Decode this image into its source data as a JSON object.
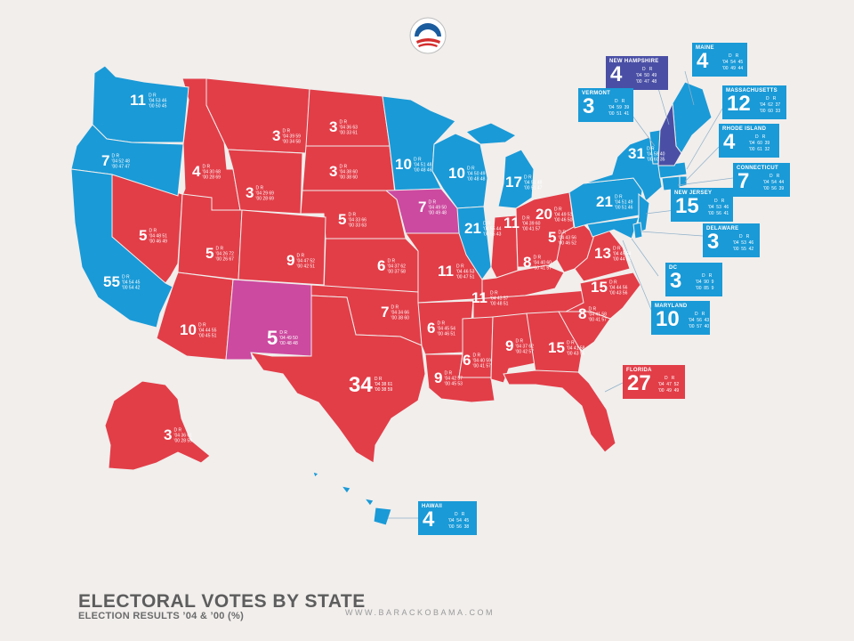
{
  "colors": {
    "democrat": "#1a9ad7",
    "republican": "#e23e48",
    "split": "#cc4aa0",
    "new_hampshire": "#4a4fa5",
    "background": "#f1eeec"
  },
  "header": {
    "logo": "campaign-logo-icon"
  },
  "footer": {
    "title": "ELECTORAL VOTES BY STATE",
    "subtitle": "ELECTION RESULTS ’04 & ’00 (%)",
    "url": "WWW.BARACKOBAMA.COM"
  },
  "col_headers": {
    "d": "D",
    "r": "R",
    "y04": "'04",
    "y00": "'00"
  },
  "states": [
    {
      "name": "Washington",
      "ev": "11",
      "r04": [
        "53",
        "46"
      ],
      "r00": [
        "50",
        "45"
      ]
    },
    {
      "name": "Oregon",
      "ev": "7",
      "r04": [
        "52",
        "48"
      ],
      "r00": [
        "47",
        "47"
      ]
    },
    {
      "name": "California",
      "ev": "55",
      "r04": [
        "54",
        "45"
      ],
      "r00": [
        "54",
        "42"
      ]
    },
    {
      "name": "Nevada",
      "ev": "5",
      "r04": [
        "48",
        "51"
      ],
      "r00": [
        "46",
        "49"
      ]
    },
    {
      "name": "Idaho",
      "ev": "4",
      "r04": [
        "30",
        "68"
      ],
      "r00": [
        "28",
        "69"
      ]
    },
    {
      "name": "Montana",
      "ev": "3",
      "r04": [
        "39",
        "59"
      ],
      "r00": [
        "34",
        "58"
      ]
    },
    {
      "name": "Wyoming",
      "ev": "3",
      "r04": [
        "29",
        "69"
      ],
      "r00": [
        "28",
        "69"
      ]
    },
    {
      "name": "Utah",
      "ev": "5",
      "r04": [
        "26",
        "72"
      ],
      "r00": [
        "26",
        "67"
      ]
    },
    {
      "name": "Arizona",
      "ev": "10",
      "r04": [
        "44",
        "55"
      ],
      "r00": [
        "45",
        "51"
      ]
    },
    {
      "name": "Colorado",
      "ev": "9",
      "r04": [
        "47",
        "52"
      ],
      "r00": [
        "42",
        "51"
      ]
    },
    {
      "name": "New Mexico",
      "ev": "5",
      "r04": [
        "49",
        "50"
      ],
      "r00": [
        "48",
        "48"
      ]
    },
    {
      "name": "North Dakota",
      "ev": "3",
      "r04": [
        "36",
        "63"
      ],
      "r00": [
        "33",
        "61"
      ]
    },
    {
      "name": "South Dakota",
      "ev": "3",
      "r04": [
        "38",
        "60"
      ],
      "r00": [
        "38",
        "60"
      ]
    },
    {
      "name": "Nebraska",
      "ev": "5",
      "r04": [
        "33",
        "66"
      ],
      "r00": [
        "33",
        "63"
      ]
    },
    {
      "name": "Kansas",
      "ev": "6",
      "r04": [
        "37",
        "62"
      ],
      "r00": [
        "37",
        "58"
      ]
    },
    {
      "name": "Oklahoma",
      "ev": "7",
      "r04": [
        "34",
        "66"
      ],
      "r00": [
        "38",
        "60"
      ]
    },
    {
      "name": "Texas",
      "ev": "34",
      "r04": [
        "38",
        "61"
      ],
      "r00": [
        "38",
        "59"
      ]
    },
    {
      "name": "Minnesota",
      "ev": "10",
      "r04": [
        "51",
        "48"
      ],
      "r00": [
        "48",
        "46"
      ]
    },
    {
      "name": "Iowa",
      "ev": "7",
      "r04": [
        "49",
        "50"
      ],
      "r00": [
        "49",
        "48"
      ]
    },
    {
      "name": "Missouri",
      "ev": "11",
      "r04": [
        "46",
        "53"
      ],
      "r00": [
        "47",
        "51"
      ]
    },
    {
      "name": "Arkansas",
      "ev": "6",
      "r04": [
        "45",
        "54"
      ],
      "r00": [
        "46",
        "51"
      ]
    },
    {
      "name": "Louisiana",
      "ev": "9",
      "r04": [
        "42",
        "57"
      ],
      "r00": [
        "45",
        "53"
      ]
    },
    {
      "name": "Wisconsin",
      "ev": "10",
      "r04": [
        "50",
        "49"
      ],
      "r00": [
        "48",
        "48"
      ]
    },
    {
      "name": "Illinois",
      "ev": "21",
      "r04": [
        "55",
        "44"
      ],
      "r00": [
        "55",
        "43"
      ]
    },
    {
      "name": "Michigan",
      "ev": "17",
      "r04": [
        "51",
        "48"
      ],
      "r00": [
        "51",
        "47"
      ]
    },
    {
      "name": "Indiana",
      "ev": "11",
      "r04": [
        "39",
        "60"
      ],
      "r00": [
        "41",
        "57"
      ]
    },
    {
      "name": "Kentucky",
      "ev": "8",
      "r04": [
        "40",
        "60"
      ],
      "r00": [
        "41",
        "57"
      ]
    },
    {
      "name": "Ohio",
      "ev": "20",
      "r04": [
        "49",
        "51"
      ],
      "r00": [
        "46",
        "50"
      ]
    },
    {
      "name": "Tennessee",
      "ev": "11",
      "r04": [
        "43",
        "57"
      ],
      "r00": [
        "48",
        "51"
      ]
    },
    {
      "name": "Mississippi",
      "ev": "6",
      "r04": [
        "40",
        "59"
      ],
      "r00": [
        "41",
        "57"
      ]
    },
    {
      "name": "Alabama",
      "ev": "9",
      "r04": [
        "37",
        "62"
      ],
      "r00": [
        "42",
        "57"
      ]
    },
    {
      "name": "Georgia",
      "ev": "15",
      "r04": [
        "41",
        "58"
      ],
      "r00": [
        "43",
        "55"
      ]
    },
    {
      "name": "West Virginia",
      "ev": "5",
      "r04": [
        "43",
        "56"
      ],
      "r00": [
        "46",
        "52"
      ]
    },
    {
      "name": "Virginia",
      "ev": "13",
      "r04": [
        "45",
        "54"
      ],
      "r00": [
        "44",
        "52"
      ]
    },
    {
      "name": "North Carolina",
      "ev": "15",
      "r04": [
        "44",
        "56"
      ],
      "r00": [
        "43",
        "56"
      ]
    },
    {
      "name": "South Carolina",
      "ev": "8",
      "r04": [
        "41",
        "58"
      ],
      "r00": [
        "41",
        "57"
      ]
    },
    {
      "name": "Pennsylvania",
      "ev": "21",
      "r04": [
        "51",
        "49"
      ],
      "r00": [
        "51",
        "46"
      ]
    },
    {
      "name": "New York",
      "ev": "31",
      "r04": [
        "58",
        "40"
      ],
      "r00": [
        "60",
        "35"
      ]
    },
    {
      "name": "Alaska",
      "ev": "3",
      "r04": [
        "36",
        "61"
      ],
      "r00": [
        "28",
        "59"
      ]
    }
  ],
  "callouts": [
    {
      "name": "NEW HAMPSHIRE",
      "ev": "4",
      "r04": [
        "50",
        "49"
      ],
      "r00": [
        "47",
        "48"
      ]
    },
    {
      "name": "MAINE",
      "ev": "4",
      "r04": [
        "54",
        "45"
      ],
      "r00": [
        "49",
        "44"
      ]
    },
    {
      "name": "VERMONT",
      "ev": "3",
      "r04": [
        "59",
        "39"
      ],
      "r00": [
        "51",
        "41"
      ]
    },
    {
      "name": "MASSACHUSETTS",
      "ev": "12",
      "r04": [
        "62",
        "37"
      ],
      "r00": [
        "60",
        "33"
      ]
    },
    {
      "name": "RHODE ISLAND",
      "ev": "4",
      "r04": [
        "60",
        "39"
      ],
      "r00": [
        "61",
        "32"
      ]
    },
    {
      "name": "CONNECTICUT",
      "ev": "7",
      "r04": [
        "54",
        "44"
      ],
      "r00": [
        "56",
        "39"
      ]
    },
    {
      "name": "NEW JERSEY",
      "ev": "15",
      "r04": [
        "53",
        "46"
      ],
      "r00": [
        "56",
        "41"
      ]
    },
    {
      "name": "DELAWARE",
      "ev": "3",
      "r04": [
        "53",
        "46"
      ],
      "r00": [
        "55",
        "42"
      ]
    },
    {
      "name": "DC",
      "ev": "3",
      "r04": [
        "90",
        "9"
      ],
      "r00": [
        "85",
        "9"
      ]
    },
    {
      "name": "MARYLAND",
      "ev": "10",
      "r04": [
        "56",
        "43"
      ],
      "r00": [
        "57",
        "40"
      ]
    },
    {
      "name": "FLORIDA",
      "ev": "27",
      "r04": [
        "47",
        "52"
      ],
      "r00": [
        "49",
        "49"
      ]
    },
    {
      "name": "HAWAII",
      "ev": "4",
      "r04": [
        "54",
        "45"
      ],
      "r00": [
        "56",
        "38"
      ]
    }
  ]
}
